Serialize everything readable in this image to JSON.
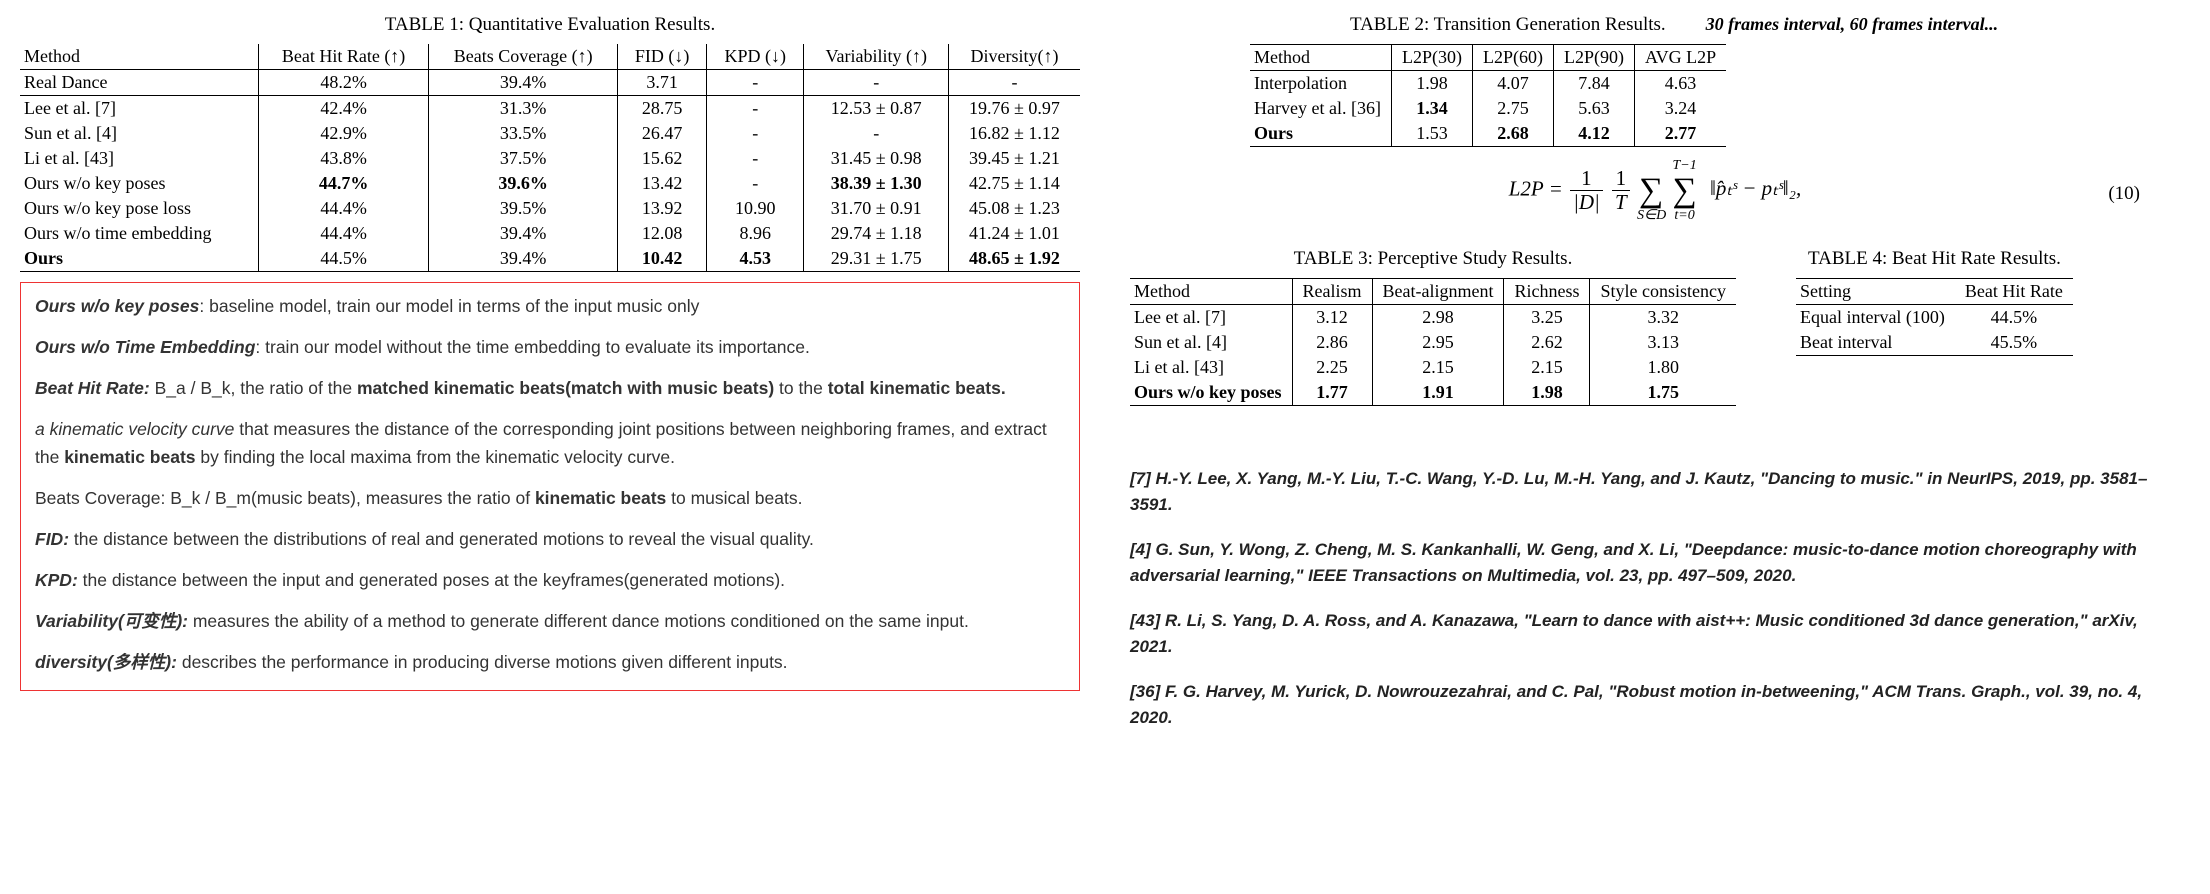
{
  "table1": {
    "caption": "TABLE 1: Quantitative Evaluation Results.",
    "columns": [
      "Method",
      "Beat Hit Rate (↑)",
      "Beats Coverage (↑)",
      "FID (↓)",
      "KPD (↓)",
      "Variability (↑)",
      "Diversity(↑)"
    ],
    "rows": [
      {
        "method": "Real Dance",
        "bhr": "48.2%",
        "bc": "39.4%",
        "fid": "3.71",
        "kpd": "-",
        "var": "-",
        "div": "-",
        "bold": []
      },
      {
        "method": "Lee et al. [7]",
        "bhr": "42.4%",
        "bc": "31.3%",
        "fid": "28.75",
        "kpd": "-",
        "var": "12.53 ± 0.87",
        "div": "19.76 ± 0.97",
        "bold": []
      },
      {
        "method": "Sun et al. [4]",
        "bhr": "42.9%",
        "bc": "33.5%",
        "fid": "26.47",
        "kpd": "-",
        "var": "-",
        "div": "16.82 ± 1.12",
        "bold": []
      },
      {
        "method": "Li et al. [43]",
        "bhr": "43.8%",
        "bc": "37.5%",
        "fid": "15.62",
        "kpd": "-",
        "var": "31.45 ± 0.98",
        "div": "39.45 ± 1.21",
        "bold": []
      },
      {
        "method": "Ours w/o key poses",
        "bhr": "44.7%",
        "bc": "39.6%",
        "fid": "13.42",
        "kpd": "-",
        "var": "38.39 ± 1.30",
        "div": "42.75 ± 1.14",
        "bold": [
          "bhr",
          "bc",
          "var"
        ]
      },
      {
        "method": "Ours w/o key pose loss",
        "bhr": "44.4%",
        "bc": "39.5%",
        "fid": "13.92",
        "kpd": "10.90",
        "var": "31.70 ± 0.91",
        "div": "45.08 ± 1.23",
        "bold": []
      },
      {
        "method": "Ours w/o time embedding",
        "bhr": "44.4%",
        "bc": "39.4%",
        "fid": "12.08",
        "kpd": "8.96",
        "var": "29.74 ± 1.18",
        "div": "41.24 ± 1.01",
        "bold": []
      },
      {
        "method": "Ours",
        "bhr": "44.5%",
        "bc": "39.4%",
        "fid": "10.42",
        "kpd": "4.53",
        "var": "29.31 ± 1.75",
        "div": "48.65 ± 1.92",
        "bold": [
          "method",
          "fid",
          "kpd",
          "div"
        ]
      }
    ],
    "rule_after_row": 0
  },
  "table2": {
    "caption": "TABLE 2: Transition Generation Results.",
    "annotation": "30 frames interval, 60 frames interval...",
    "columns": [
      "Method",
      "L2P(30)",
      "L2P(60)",
      "L2P(90)",
      "AVG L2P"
    ],
    "rows": [
      {
        "method": "Interpolation",
        "c1": "1.98",
        "c2": "4.07",
        "c3": "7.84",
        "c4": "4.63",
        "bold": []
      },
      {
        "method": "Harvey et al. [36]",
        "c1": "1.34",
        "c2": "2.75",
        "c3": "5.63",
        "c4": "3.24",
        "bold": [
          "c1"
        ]
      },
      {
        "method": "Ours",
        "c1": "1.53",
        "c2": "2.68",
        "c3": "4.12",
        "c4": "2.77",
        "bold": [
          "method",
          "c2",
          "c3",
          "c4"
        ]
      }
    ]
  },
  "equation": {
    "lhs": "L2P =",
    "frac1_num": "1",
    "frac1_den": "|D|",
    "frac2_num": "1",
    "frac2_den": "T",
    "sum1_top": "",
    "sum1_bot": "S∈D",
    "sum2_top": "T−1",
    "sum2_bot": "t=0",
    "body": "‖p̂ₜˢ − pₜˢ‖₂,",
    "number": "(10)"
  },
  "table3": {
    "caption": "TABLE 3: Perceptive Study Results.",
    "columns": [
      "Method",
      "Realism",
      "Beat-alignment",
      "Richness",
      "Style consistency"
    ],
    "rows": [
      {
        "method": "Lee et al. [7]",
        "c1": "3.12",
        "c2": "2.98",
        "c3": "3.25",
        "c4": "3.32",
        "bold": []
      },
      {
        "method": "Sun et al. [4]",
        "c1": "2.86",
        "c2": "2.95",
        "c3": "2.62",
        "c4": "3.13",
        "bold": []
      },
      {
        "method": "Li et al. [43]",
        "c1": "2.25",
        "c2": "2.15",
        "c3": "2.15",
        "c4": "1.80",
        "bold": []
      },
      {
        "method": "Ours w/o key poses",
        "c1": "1.77",
        "c2": "1.91",
        "c3": "1.98",
        "c4": "1.75",
        "bold": [
          "method",
          "c1",
          "c2",
          "c3",
          "c4"
        ]
      }
    ]
  },
  "table4": {
    "caption": "TABLE 4: Beat Hit Rate Results.",
    "columns": [
      "Setting",
      "Beat Hit Rate"
    ],
    "rows": [
      {
        "c0": "Equal interval (100)",
        "c1": "44.5%"
      },
      {
        "c0": "Beat interval",
        "c1": "45.5%"
      }
    ]
  },
  "redbox": {
    "p1a": "Ours w/o key poses",
    "p1b": ":  baseline model, train our model in terms of the input music only",
    "p2a": "Ours w/o Time Embedding",
    "p2b": ":  train our model without the time embedding to evaluate its importance.",
    "p3a": "Beat Hit Rate:",
    "p3b": " B_a / B_k,  the ratio of the ",
    "p3c": "matched kinematic beats(match with music beats)",
    "p3d": " to the ",
    "p3e": "total kinematic beats.",
    "p4a": "a kinematic velocity curve",
    "p4b": " that measures the distance of the corresponding joint positions between neighboring frames, and extract the ",
    "p4c": "kinematic beats",
    "p4d": " by finding the local maxima from the kinematic velocity curve.",
    "p5": "Beats Coverage: B_k / B_m(music beats),  measures the ratio of ",
    "p5b": "kinematic beats",
    "p5c": " to musical beats.",
    "p6a": "FID:",
    "p6b": " the distance between the distributions of real and generated motions to reveal the visual quality.",
    "p7a": "KPD:",
    "p7b": " the distance between the input and generated poses at the keyframes(generated motions).",
    "p8a": "Variability(可变性):",
    "p8b": " measures the ability of a method to generate different dance motions conditioned on the same input.",
    "p9a": "diversity(多样性):",
    "p9b": " describes the performance in producing diverse motions given different inputs."
  },
  "refs": {
    "r1": "[7] H.-Y. Lee, X. Yang, M.-Y. Liu, T.-C. Wang, Y.-D. Lu, M.-H. Yang, and J. Kautz, \"Dancing to music.\" in NeurIPS, 2019, pp. 3581–3591.",
    "r2": "[4] G. Sun, Y. Wong, Z. Cheng, M. S. Kankanhalli, W. Geng, and X. Li, \"Deepdance: music-to-dance motion choreography with adversarial learning,\" IEEE Transactions on Multimedia, vol. 23, pp. 497–509, 2020.",
    "r3": "[43] R. Li, S. Yang, D. A. Ross, and A. Kanazawa, \"Learn to dance with aist++: Music conditioned 3d dance generation,\" arXiv, 2021.",
    "r4": "[36] F. G. Harvey, M. Yurick, D. Nowrouzezahrai, and C. Pal, \"Robust motion in-betweening,\" ACM Trans. Graph., vol. 39, no. 4, 2020."
  }
}
